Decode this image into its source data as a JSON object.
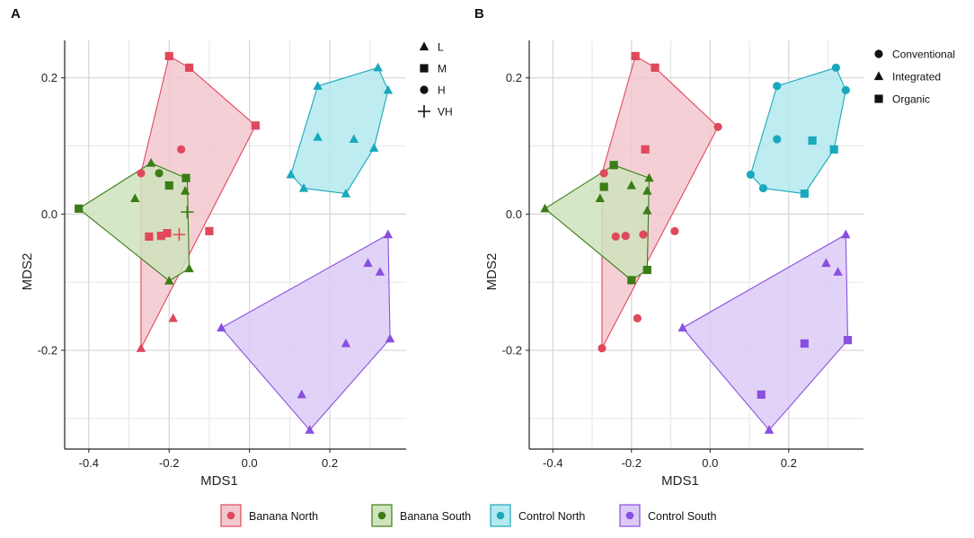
{
  "chart_data": [
    {
      "type": "scatter",
      "panel_label": "A",
      "xlabel": "MDS1",
      "ylabel": "MDS2",
      "xlim": [
        -0.46,
        0.39
      ],
      "ylim": [
        -0.345,
        0.255
      ],
      "xticks": [
        -0.4,
        -0.2,
        0.0,
        0.2
      ],
      "yticks": [
        -0.2,
        0.0,
        0.2
      ],
      "xtick_labels": [
        "-0.4",
        "-0.2",
        "0.0",
        "0.2"
      ],
      "ytick_labels": [
        "-0.2",
        "0.0",
        "0.2"
      ],
      "grid": true,
      "shape_legend_title": "",
      "shape_legend": [
        {
          "shape": "triangle",
          "label": "L"
        },
        {
          "shape": "square",
          "label": "M"
        },
        {
          "shape": "circle",
          "label": "H"
        },
        {
          "shape": "cross",
          "label": "VH"
        }
      ],
      "series": [
        {
          "name": "Banana North",
          "color": "#e0485c",
          "fill": "#f2c8cf",
          "hull": [
            [
              -0.2,
              0.232
            ],
            [
              -0.15,
              0.215
            ],
            [
              0.015,
              0.13
            ],
            [
              -0.27,
              -0.197
            ],
            [
              -0.27,
              0.06
            ]
          ],
          "points": [
            {
              "x": -0.2,
              "y": 0.232,
              "shape": "square"
            },
            {
              "x": -0.15,
              "y": 0.215,
              "shape": "square"
            },
            {
              "x": 0.015,
              "y": 0.13,
              "shape": "square"
            },
            {
              "x": -0.17,
              "y": 0.095,
              "shape": "circle"
            },
            {
              "x": -0.27,
              "y": 0.06,
              "shape": "circle"
            },
            {
              "x": -0.1,
              "y": -0.025,
              "shape": "square"
            },
            {
              "x": -0.25,
              "y": -0.033,
              "shape": "square"
            },
            {
              "x": -0.22,
              "y": -0.032,
              "shape": "square"
            },
            {
              "x": -0.205,
              "y": -0.028,
              "shape": "square"
            },
            {
              "x": -0.175,
              "y": -0.03,
              "shape": "cross"
            },
            {
              "x": -0.19,
              "y": -0.153,
              "shape": "triangle"
            },
            {
              "x": -0.27,
              "y": -0.197,
              "shape": "triangle"
            }
          ]
        },
        {
          "name": "Banana South",
          "color": "#3a7d16",
          "fill": "#cfe3bd",
          "hull": [
            [
              -0.245,
              0.075
            ],
            [
              -0.155,
              0.052
            ],
            [
              -0.15,
              -0.08
            ],
            [
              -0.2,
              -0.098
            ],
            [
              -0.425,
              0.008
            ]
          ],
          "points": [
            {
              "x": -0.425,
              "y": 0.008,
              "shape": "square"
            },
            {
              "x": -0.245,
              "y": 0.075,
              "shape": "triangle"
            },
            {
              "x": -0.285,
              "y": 0.023,
              "shape": "triangle"
            },
            {
              "x": -0.225,
              "y": 0.06,
              "shape": "circle"
            },
            {
              "x": -0.2,
              "y": 0.042,
              "shape": "square"
            },
            {
              "x": -0.158,
              "y": 0.053,
              "shape": "square"
            },
            {
              "x": -0.16,
              "y": 0.034,
              "shape": "triangle"
            },
            {
              "x": -0.155,
              "y": 0.003,
              "shape": "cross"
            },
            {
              "x": -0.15,
              "y": -0.08,
              "shape": "triangle"
            },
            {
              "x": -0.2,
              "y": -0.098,
              "shape": "triangle"
            }
          ]
        },
        {
          "name": "Control North",
          "color": "#1aa8bd",
          "fill": "#b3e9ef",
          "hull": [
            [
              0.17,
              0.188
            ],
            [
              0.32,
              0.215
            ],
            [
              0.345,
              0.182
            ],
            [
              0.31,
              0.097
            ],
            [
              0.24,
              0.03
            ],
            [
              0.135,
              0.038
            ],
            [
              0.103,
              0.058
            ]
          ],
          "points": [
            {
              "x": 0.17,
              "y": 0.188,
              "shape": "triangle"
            },
            {
              "x": 0.32,
              "y": 0.215,
              "shape": "triangle"
            },
            {
              "x": 0.345,
              "y": 0.182,
              "shape": "triangle"
            },
            {
              "x": 0.17,
              "y": 0.113,
              "shape": "triangle"
            },
            {
              "x": 0.26,
              "y": 0.11,
              "shape": "triangle"
            },
            {
              "x": 0.31,
              "y": 0.097,
              "shape": "triangle"
            },
            {
              "x": 0.103,
              "y": 0.058,
              "shape": "triangle"
            },
            {
              "x": 0.135,
              "y": 0.038,
              "shape": "triangle"
            },
            {
              "x": 0.24,
              "y": 0.03,
              "shape": "triangle"
            }
          ]
        },
        {
          "name": "Control South",
          "color": "#8a4ee0",
          "fill": "#dccbf6",
          "hull": [
            [
              0.345,
              -0.03
            ],
            [
              0.35,
              -0.183
            ],
            [
              0.15,
              -0.317
            ],
            [
              -0.07,
              -0.167
            ]
          ],
          "points": [
            {
              "x": 0.345,
              "y": -0.03,
              "shape": "triangle"
            },
            {
              "x": 0.295,
              "y": -0.072,
              "shape": "triangle"
            },
            {
              "x": 0.325,
              "y": -0.085,
              "shape": "triangle"
            },
            {
              "x": -0.07,
              "y": -0.167,
              "shape": "triangle"
            },
            {
              "x": 0.35,
              "y": -0.183,
              "shape": "triangle"
            },
            {
              "x": 0.24,
              "y": -0.19,
              "shape": "triangle"
            },
            {
              "x": 0.13,
              "y": -0.265,
              "shape": "triangle"
            },
            {
              "x": 0.15,
              "y": -0.317,
              "shape": "triangle"
            }
          ]
        }
      ]
    },
    {
      "type": "scatter",
      "panel_label": "B",
      "xlabel": "MDS1",
      "ylabel": "MDS2",
      "xlim": [
        -0.46,
        0.39
      ],
      "ylim": [
        -0.345,
        0.255
      ],
      "xticks": [
        -0.4,
        -0.2,
        0.0,
        0.2
      ],
      "yticks": [
        -0.2,
        0.0,
        0.2
      ],
      "xtick_labels": [
        "-0.4",
        "-0.2",
        "0.0",
        "0.2"
      ],
      "ytick_labels": [
        "-0.2",
        "0.0",
        "0.2"
      ],
      "grid": true,
      "shape_legend_title": "",
      "shape_legend": [
        {
          "shape": "circle",
          "label": "Conventional"
        },
        {
          "shape": "triangle",
          "label": "Integrated"
        },
        {
          "shape": "square",
          "label": "Organic"
        }
      ],
      "series": [
        {
          "name": "Banana North",
          "color": "#e0485c",
          "fill": "#f2c8cf",
          "hull": [
            [
              -0.19,
              0.232
            ],
            [
              -0.14,
              0.215
            ],
            [
              0.02,
              0.128
            ],
            [
              -0.275,
              -0.197
            ],
            [
              -0.275,
              0.06
            ]
          ],
          "points": [
            {
              "x": -0.19,
              "y": 0.232,
              "shape": "square"
            },
            {
              "x": -0.14,
              "y": 0.215,
              "shape": "square"
            },
            {
              "x": 0.02,
              "y": 0.128,
              "shape": "circle"
            },
            {
              "x": -0.165,
              "y": 0.095,
              "shape": "square"
            },
            {
              "x": -0.27,
              "y": 0.06,
              "shape": "circle"
            },
            {
              "x": -0.09,
              "y": -0.025,
              "shape": "circle"
            },
            {
              "x": -0.24,
              "y": -0.033,
              "shape": "circle"
            },
            {
              "x": -0.215,
              "y": -0.032,
              "shape": "circle"
            },
            {
              "x": -0.17,
              "y": -0.03,
              "shape": "circle"
            },
            {
              "x": -0.185,
              "y": -0.153,
              "shape": "circle"
            },
            {
              "x": -0.275,
              "y": -0.197,
              "shape": "circle"
            }
          ]
        },
        {
          "name": "Banana South",
          "color": "#3a7d16",
          "fill": "#cfe3bd",
          "hull": [
            [
              -0.245,
              0.072
            ],
            [
              -0.155,
              0.053
            ],
            [
              -0.16,
              -0.082
            ],
            [
              -0.2,
              -0.097
            ],
            [
              -0.42,
              0.008
            ]
          ],
          "points": [
            {
              "x": -0.42,
              "y": 0.008,
              "shape": "triangle"
            },
            {
              "x": -0.245,
              "y": 0.072,
              "shape": "square"
            },
            {
              "x": -0.28,
              "y": 0.023,
              "shape": "triangle"
            },
            {
              "x": -0.27,
              "y": 0.04,
              "shape": "square"
            },
            {
              "x": -0.2,
              "y": 0.042,
              "shape": "triangle"
            },
            {
              "x": -0.155,
              "y": 0.053,
              "shape": "triangle"
            },
            {
              "x": -0.16,
              "y": 0.034,
              "shape": "triangle"
            },
            {
              "x": -0.16,
              "y": 0.005,
              "shape": "triangle"
            },
            {
              "x": -0.16,
              "y": -0.082,
              "shape": "square"
            },
            {
              "x": -0.2,
              "y": -0.097,
              "shape": "square"
            }
          ]
        },
        {
          "name": "Control North",
          "color": "#1aa8bd",
          "fill": "#b3e9ef",
          "hull": [
            [
              0.17,
              0.188
            ],
            [
              0.32,
              0.215
            ],
            [
              0.345,
              0.182
            ],
            [
              0.315,
              0.095
            ],
            [
              0.24,
              0.03
            ],
            [
              0.135,
              0.038
            ],
            [
              0.103,
              0.058
            ]
          ],
          "points": [
            {
              "x": 0.17,
              "y": 0.188,
              "shape": "circle"
            },
            {
              "x": 0.32,
              "y": 0.215,
              "shape": "circle"
            },
            {
              "x": 0.345,
              "y": 0.182,
              "shape": "circle"
            },
            {
              "x": 0.17,
              "y": 0.11,
              "shape": "circle"
            },
            {
              "x": 0.26,
              "y": 0.108,
              "shape": "square"
            },
            {
              "x": 0.315,
              "y": 0.095,
              "shape": "square"
            },
            {
              "x": 0.103,
              "y": 0.058,
              "shape": "circle"
            },
            {
              "x": 0.135,
              "y": 0.038,
              "shape": "circle"
            },
            {
              "x": 0.24,
              "y": 0.03,
              "shape": "square"
            }
          ]
        },
        {
          "name": "Control South",
          "color": "#8a4ee0",
          "fill": "#dccbf6",
          "hull": [
            [
              0.345,
              -0.03
            ],
            [
              0.35,
              -0.185
            ],
            [
              0.15,
              -0.317
            ],
            [
              -0.07,
              -0.167
            ]
          ],
          "points": [
            {
              "x": 0.345,
              "y": -0.03,
              "shape": "triangle"
            },
            {
              "x": 0.295,
              "y": -0.072,
              "shape": "triangle"
            },
            {
              "x": 0.325,
              "y": -0.085,
              "shape": "triangle"
            },
            {
              "x": -0.07,
              "y": -0.167,
              "shape": "triangle"
            },
            {
              "x": 0.35,
              "y": -0.185,
              "shape": "square"
            },
            {
              "x": 0.24,
              "y": -0.19,
              "shape": "square"
            },
            {
              "x": 0.13,
              "y": -0.265,
              "shape": "square"
            },
            {
              "x": 0.15,
              "y": -0.317,
              "shape": "triangle"
            }
          ]
        }
      ]
    }
  ],
  "group_legend": [
    {
      "label": "Banana North",
      "color": "#e0485c",
      "fill": "#f2c8cf"
    },
    {
      "label": "Banana South",
      "color": "#3a7d16",
      "fill": "#cfe3bd"
    },
    {
      "label": "Control North",
      "color": "#1aa8bd",
      "fill": "#b3e9ef"
    },
    {
      "label": "Control South",
      "color": "#8a4ee0",
      "fill": "#dccbf6"
    }
  ]
}
